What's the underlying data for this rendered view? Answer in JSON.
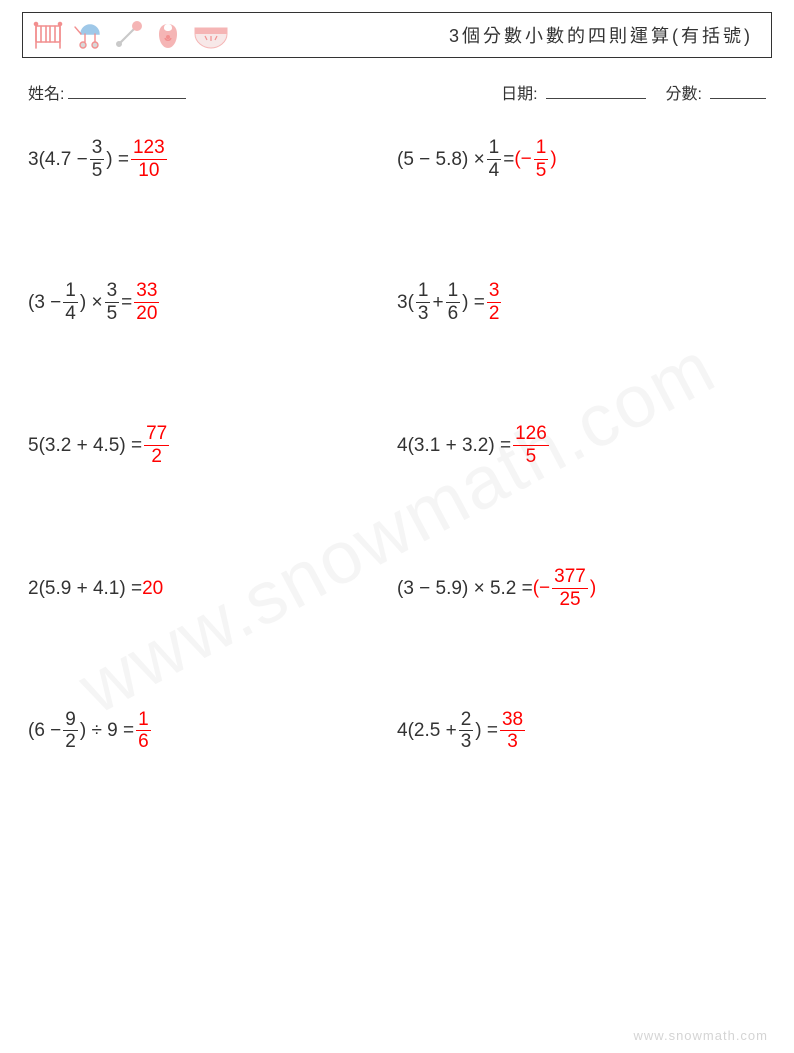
{
  "colors": {
    "page_bg": "#ffffff",
    "text": "#333333",
    "border": "#333333",
    "answer": "#ff0000",
    "watermark": "rgba(120,120,120,0.07)",
    "footer": "rgba(100,100,100,0.28)",
    "icon_pink": "#f5b5b5",
    "icon_coral": "#f28f8f",
    "icon_silver": "#d8d8d8",
    "icon_blue": "#9fc8e8"
  },
  "header": {
    "title": "3個分數小數的四則運算(有括號)"
  },
  "info": {
    "name_label": "姓名:",
    "date_label": "日期:",
    "score_label": "分數:"
  },
  "problems": [
    {
      "lhs_pre": "3(4.7 − ",
      "lhs_frac": {
        "n": "3",
        "d": "5"
      },
      "lhs_post": ") = ",
      "ans_pre": "",
      "ans_frac": {
        "n": "123",
        "d": "10"
      },
      "ans_post": ""
    },
    {
      "lhs_pre": "(5 − 5.8) × ",
      "lhs_frac": {
        "n": "1",
        "d": "4"
      },
      "lhs_post": " = ",
      "ans_pre": "(−",
      "ans_frac": {
        "n": "1",
        "d": "5"
      },
      "ans_post": ")"
    },
    {
      "lhs_pre": "(3 − ",
      "lhs_frac": {
        "n": "1",
        "d": "4"
      },
      "lhs_post": ") × ",
      "lhs_frac2": {
        "n": "3",
        "d": "5"
      },
      "lhs_post2": " = ",
      "ans_pre": "",
      "ans_frac": {
        "n": "33",
        "d": "20"
      },
      "ans_post": ""
    },
    {
      "lhs_pre": "3(",
      "lhs_frac": {
        "n": "1",
        "d": "3"
      },
      "lhs_post": " + ",
      "lhs_frac2": {
        "n": "1",
        "d": "6"
      },
      "lhs_post2": ") = ",
      "ans_pre": "",
      "ans_frac": {
        "n": "3",
        "d": "2"
      },
      "ans_post": ""
    },
    {
      "lhs_plain": "5(3.2 + 4.5) = ",
      "ans_pre": "",
      "ans_frac": {
        "n": "77",
        "d": "2"
      },
      "ans_post": ""
    },
    {
      "lhs_plain": "4(3.1 + 3.2) = ",
      "ans_pre": "",
      "ans_frac": {
        "n": "126",
        "d": "5"
      },
      "ans_post": ""
    },
    {
      "lhs_plain": "2(5.9 + 4.1) = ",
      "ans_plain": "20"
    },
    {
      "lhs_plain": "(3 − 5.9) × 5.2 = ",
      "ans_pre": "(−",
      "ans_frac": {
        "n": "377",
        "d": "25"
      },
      "ans_post": ")"
    },
    {
      "lhs_pre": "(6 − ",
      "lhs_frac": {
        "n": "9",
        "d": "2"
      },
      "lhs_post": ") ÷ 9 = ",
      "ans_pre": "",
      "ans_frac": {
        "n": "1",
        "d": "6"
      },
      "ans_post": ""
    },
    {
      "lhs_pre": "4(2.5 + ",
      "lhs_frac": {
        "n": "2",
        "d": "3"
      },
      "lhs_post": ") = ",
      "ans_pre": "",
      "ans_frac": {
        "n": "38",
        "d": "3"
      },
      "ans_post": ""
    }
  ],
  "watermark": "www.snowmath.com",
  "footer": "www.snowmath.com"
}
